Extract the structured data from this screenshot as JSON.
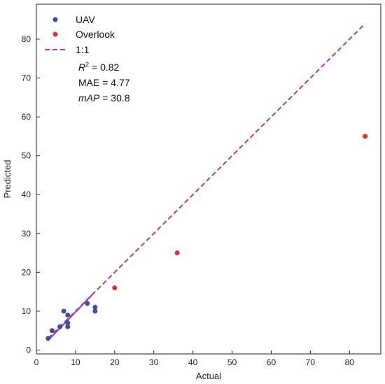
{
  "chart_data": {
    "type": "scatter",
    "xlabel": "Actual",
    "ylabel": "Predicted",
    "xlim": [
      0,
      88
    ],
    "ylim": [
      -1,
      89
    ],
    "xticks": [
      0,
      10,
      20,
      30,
      40,
      50,
      60,
      70,
      80
    ],
    "yticks": [
      0,
      10,
      20,
      30,
      40,
      50,
      60,
      70,
      80
    ],
    "grid": false,
    "legend_placement": "top-left",
    "series": [
      {
        "name": "UAV",
        "color": "#3a4fa0",
        "points": [
          [
            3,
            3
          ],
          [
            4,
            5
          ],
          [
            6,
            6
          ],
          [
            7,
            10
          ],
          [
            8,
            7
          ],
          [
            8,
            9
          ],
          [
            8,
            6
          ],
          [
            13,
            12
          ],
          [
            15,
            11
          ],
          [
            15,
            10
          ]
        ]
      },
      {
        "name": "Overlook",
        "color": "#e03030",
        "points": [
          [
            20,
            16
          ],
          [
            36,
            25
          ],
          [
            84,
            55
          ]
        ]
      }
    ],
    "reference_line": {
      "name": "1:1",
      "color": "#a63aa8",
      "from": [
        3,
        3
      ],
      "to": [
        84,
        84
      ]
    },
    "fit_line": {
      "color": "#a63aa8",
      "from": [
        3,
        2.5
      ],
      "to": [
        15,
        15
      ]
    },
    "stats": {
      "r2_label": "R",
      "r2_sup": "2",
      "r2_value": " = 0.82",
      "mae": "MAE = 4.77",
      "map_label": "mAP",
      "map_value": " = 30.8"
    }
  }
}
